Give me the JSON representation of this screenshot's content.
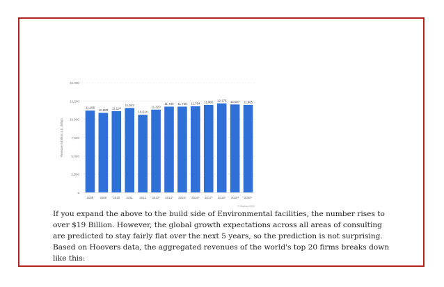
{
  "chart_data": {
    "type": "bar",
    "title": "",
    "xlabel": "",
    "ylabel": "Revenue in billion U.S. dollars",
    "categories": [
      "2008",
      "2009",
      "2010",
      "2011",
      "2012",
      "2013*",
      "2014*",
      "2015*",
      "2016*",
      "2017*",
      "2018*",
      "2019*",
      "2020*"
    ],
    "values": [
      11189,
      10880,
      11114,
      11542,
      10614,
      11320,
      11730,
      11730,
      11784,
      11965,
      12175,
      12027,
      11965
    ],
    "value_labels": [
      "11,189",
      "10,880",
      "11,114",
      "11,542",
      "10,614",
      "11,320",
      "11,730",
      "11,730",
      "11,784",
      "11,965",
      "12,175",
      "12,027",
      "11,965"
    ],
    "yticks": [
      0,
      2500,
      5000,
      7500,
      10000,
      12500,
      15000
    ],
    "ytick_labels": [
      "0",
      "2,500",
      "5,000",
      "7,500",
      "10,000",
      "12,500",
      "15,000"
    ],
    "ylim": [
      0,
      15000
    ],
    "grid": true,
    "bar_color": "#2f6fd8",
    "source": "© Statista 2019"
  },
  "paragraph": "If you expand the above to the build side of Environmental facilities, the number rises to over $19 Billion. However, the global growth expectations across all areas of consulting are predicted to stay fairly flat over the next 5 years, so the prediction is not surprising. Based on Hoovers data, the aggregated revenues of the world's top 20 firms breaks down like this:"
}
